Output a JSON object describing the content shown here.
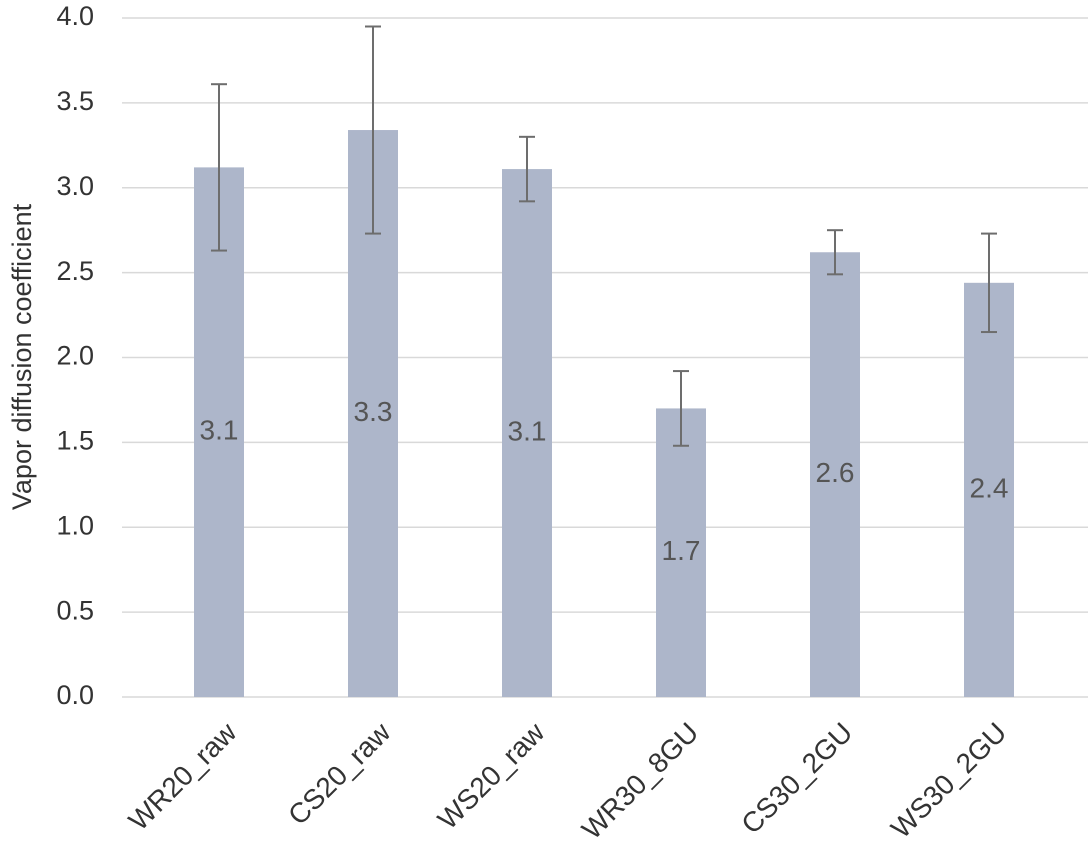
{
  "chart_data": {
    "type": "bar",
    "y_label": "Vapor diffusion coefficient",
    "categories": [
      "WR20_raw",
      "CS20_raw",
      "WS20_raw",
      "WR30_8GU",
      "CS30_2GU",
      "WS30_2GU"
    ],
    "values": [
      3.12,
      3.34,
      3.11,
      1.7,
      2.62,
      2.44
    ],
    "value_labels": [
      "3.1",
      "3.3",
      "3.1",
      "1.7",
      "2.6",
      "2.4"
    ],
    "errors": [
      0.49,
      0.61,
      0.19,
      0.22,
      0.13,
      0.29
    ],
    "color": "#adb6ca",
    "error_color": "#6d6d6d",
    "ylim": [
      0,
      4
    ],
    "yticks": [
      {
        "value": 0,
        "label": "0.0"
      },
      0.5,
      {
        "value": 1,
        "label": "1.0"
      },
      1.5,
      {
        "value": 2,
        "label": "2.0"
      },
      2.5,
      {
        "value": 3,
        "label": "3.0"
      },
      3.5,
      {
        "value": 4,
        "label": "4.0"
      }
    ],
    "grid": true
  }
}
